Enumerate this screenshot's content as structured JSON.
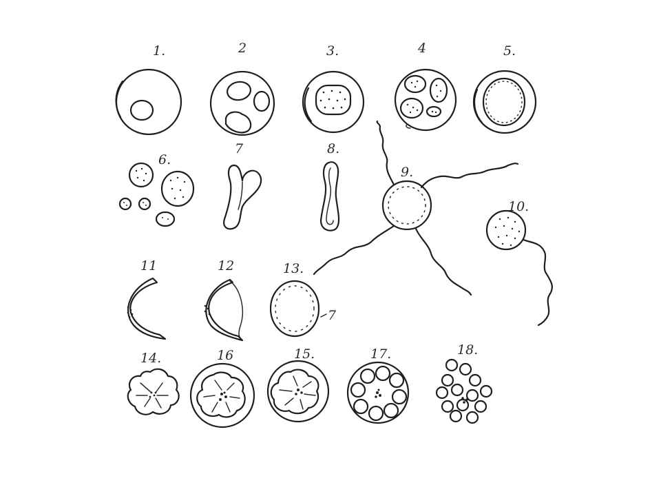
{
  "figures": [
    {
      "id": "fig-1",
      "label": "1."
    },
    {
      "id": "fig-2",
      "label": "2"
    },
    {
      "id": "fig-3",
      "label": "3."
    },
    {
      "id": "fig-4",
      "label": "4"
    },
    {
      "id": "fig-5",
      "label": "5."
    },
    {
      "id": "fig-6",
      "label": "6."
    },
    {
      "id": "fig-7",
      "label": "7"
    },
    {
      "id": "fig-8",
      "label": "8."
    },
    {
      "id": "fig-9",
      "label": "9."
    },
    {
      "id": "fig-10",
      "label": "10."
    },
    {
      "id": "fig-11",
      "label": "11"
    },
    {
      "id": "fig-12",
      "label": "12"
    },
    {
      "id": "fig-13",
      "label": "13."
    },
    {
      "id": "fig-13b",
      "label": "7"
    },
    {
      "id": "fig-14",
      "label": "14."
    },
    {
      "id": "fig-16",
      "label": "16"
    },
    {
      "id": "fig-15",
      "label": "15."
    },
    {
      "id": "fig-17",
      "label": "17."
    },
    {
      "id": "fig-18",
      "label": "18."
    }
  ],
  "ink_color": "#1e1e1e",
  "background_color": "#ffffff"
}
